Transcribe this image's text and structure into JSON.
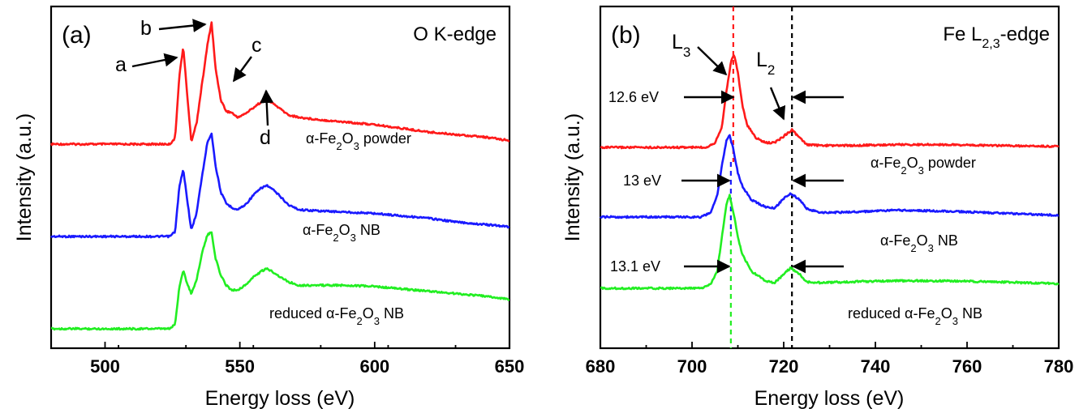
{
  "colors": {
    "powder": "#ff1a1a",
    "nb": "#1a1aff",
    "reduced": "#22ee22"
  },
  "chart_data": [
    {
      "type": "line",
      "panel_label": "(a)",
      "edge_label": "O K-edge",
      "xlabel": "Energy loss (eV)",
      "ylabel": "Intensity (a.u.)",
      "xlim": [
        480,
        650
      ],
      "xticks": [
        "500",
        "550",
        "600",
        "650"
      ],
      "xtick_values": [
        500,
        550,
        600,
        650
      ],
      "yticks": false,
      "series": [
        {
          "name": "α-Fe2O3 powder",
          "label_parts": [
            "α-Fe",
            "2",
            "O",
            "3",
            " powder"
          ],
          "color": "#ff1a1a",
          "x": [
            480,
            524,
            526,
            527.5,
            529,
            530.5,
            532,
            534,
            536,
            538,
            539.5,
            541,
            543,
            545,
            547,
            549,
            552,
            555,
            558,
            560,
            562,
            565,
            568,
            572,
            580,
            590,
            600,
            610,
            620,
            630,
            640,
            650
          ],
          "y": [
            0.0,
            0.0,
            0.05,
            0.55,
            0.8,
            0.4,
            0.02,
            0.18,
            0.5,
            0.82,
            1.0,
            0.62,
            0.36,
            0.27,
            0.26,
            0.22,
            0.25,
            0.3,
            0.35,
            0.36,
            0.34,
            0.29,
            0.24,
            0.22,
            0.2,
            0.18,
            0.16,
            0.13,
            0.1,
            0.08,
            0.06,
            0.03
          ]
        },
        {
          "name": "α-Fe2O3 NB",
          "label_parts": [
            "α-Fe",
            "2",
            "O",
            "3",
            " NB"
          ],
          "color": "#1a1aff",
          "x": [
            480,
            524,
            526,
            527.5,
            529,
            530.5,
            532,
            534,
            536,
            538,
            539.5,
            541,
            543,
            545,
            547,
            549,
            552,
            555,
            558,
            560,
            562,
            565,
            568,
            572,
            580,
            590,
            600,
            610,
            620,
            630,
            640,
            650
          ],
          "y": [
            0.0,
            0.0,
            0.04,
            0.4,
            0.55,
            0.3,
            0.05,
            0.2,
            0.5,
            0.78,
            0.85,
            0.58,
            0.36,
            0.27,
            0.24,
            0.22,
            0.26,
            0.34,
            0.4,
            0.42,
            0.39,
            0.33,
            0.26,
            0.22,
            0.21,
            0.2,
            0.19,
            0.17,
            0.15,
            0.12,
            0.1,
            0.08
          ]
        },
        {
          "name": "reduced α-Fe2O3 NB",
          "label_parts": [
            "reduced α-Fe",
            "2",
            "O",
            "3",
            " NB"
          ],
          "color": "#22ee22",
          "x": [
            480,
            524,
            526,
            527.5,
            529,
            530.5,
            532,
            534,
            536,
            538,
            539.5,
            541,
            543,
            545,
            547,
            549,
            552,
            555,
            558,
            560,
            562,
            565,
            568,
            572,
            580,
            590,
            600,
            610,
            620,
            630,
            640,
            650
          ],
          "y": [
            0.0,
            0.0,
            0.04,
            0.35,
            0.5,
            0.38,
            0.3,
            0.42,
            0.65,
            0.8,
            0.82,
            0.6,
            0.45,
            0.37,
            0.33,
            0.33,
            0.37,
            0.44,
            0.49,
            0.51,
            0.49,
            0.44,
            0.4,
            0.37,
            0.37,
            0.37,
            0.36,
            0.34,
            0.32,
            0.3,
            0.28,
            0.25
          ]
        }
      ],
      "annotations": [
        "a",
        "b",
        "c",
        "d"
      ]
    },
    {
      "type": "line",
      "panel_label": "(b)",
      "edge_label_parts": [
        "Fe L",
        "2,3",
        "-edge"
      ],
      "xlabel": "Energy loss (eV)",
      "ylabel": "Intensity (a.u.)",
      "xlim": [
        680,
        780
      ],
      "xticks": [
        "680",
        "700",
        "720",
        "740",
        "760",
        "780"
      ],
      "xtick_values": [
        680,
        700,
        720,
        740,
        760,
        780
      ],
      "yticks": false,
      "dashed_lines": [
        709.0,
        721.8
      ],
      "peak_labels": [
        {
          "main": "L",
          "sub": "3"
        },
        {
          "main": "L",
          "sub": "2"
        }
      ],
      "splittings": [
        "12.6 eV",
        "13 eV",
        "13.1 eV"
      ],
      "series": [
        {
          "name": "α-Fe2O3 powder",
          "label_parts": [
            "α-Fe",
            "2",
            "O",
            "3",
            " powder"
          ],
          "color": "#ff1a1a",
          "x": [
            680,
            703,
            705,
            706.5,
            707.5,
            708.5,
            709.2,
            710,
            711,
            712,
            714,
            716,
            718,
            720,
            721.8,
            723.5,
            725,
            728,
            735,
            745,
            755,
            765,
            780
          ],
          "y": [
            0.0,
            0.0,
            0.05,
            0.22,
            0.6,
            0.92,
            1.0,
            0.8,
            0.45,
            0.24,
            0.1,
            0.05,
            0.05,
            0.12,
            0.19,
            0.1,
            0.03,
            0.02,
            0.02,
            0.03,
            0.03,
            0.02,
            0.01
          ]
        },
        {
          "name": "α-Fe2O3 NB",
          "label_parts": [
            "α-Fe",
            "2",
            "O",
            "3",
            " NB"
          ],
          "color": "#1a1aff",
          "x": [
            680,
            702,
            704,
            705.5,
            706.5,
            707.5,
            708.2,
            709,
            710,
            711,
            713,
            716,
            718,
            720,
            721.5,
            723.5,
            725,
            728,
            735,
            745,
            755,
            765,
            780
          ],
          "y": [
            0.0,
            0.0,
            0.05,
            0.25,
            0.6,
            0.9,
            0.96,
            0.8,
            0.52,
            0.36,
            0.2,
            0.12,
            0.1,
            0.22,
            0.28,
            0.2,
            0.1,
            0.05,
            0.06,
            0.08,
            0.07,
            0.05,
            0.02
          ]
        },
        {
          "name": "reduced α-Fe2O3 NB",
          "label_parts": [
            "reduced α-Fe",
            "2",
            "O",
            "3",
            " NB"
          ],
          "color": "#22ee22",
          "x": [
            680,
            702,
            704,
            705.5,
            706.5,
            707.5,
            708.2,
            709,
            710,
            711,
            713,
            716,
            718,
            720,
            721.5,
            723.5,
            725,
            728,
            735,
            745,
            755,
            765,
            780
          ],
          "y": [
            0.0,
            0.0,
            0.04,
            0.18,
            0.55,
            0.9,
            1.0,
            0.82,
            0.55,
            0.36,
            0.18,
            0.08,
            0.06,
            0.15,
            0.22,
            0.15,
            0.07,
            0.06,
            0.07,
            0.08,
            0.08,
            0.07,
            0.05
          ]
        }
      ]
    }
  ]
}
